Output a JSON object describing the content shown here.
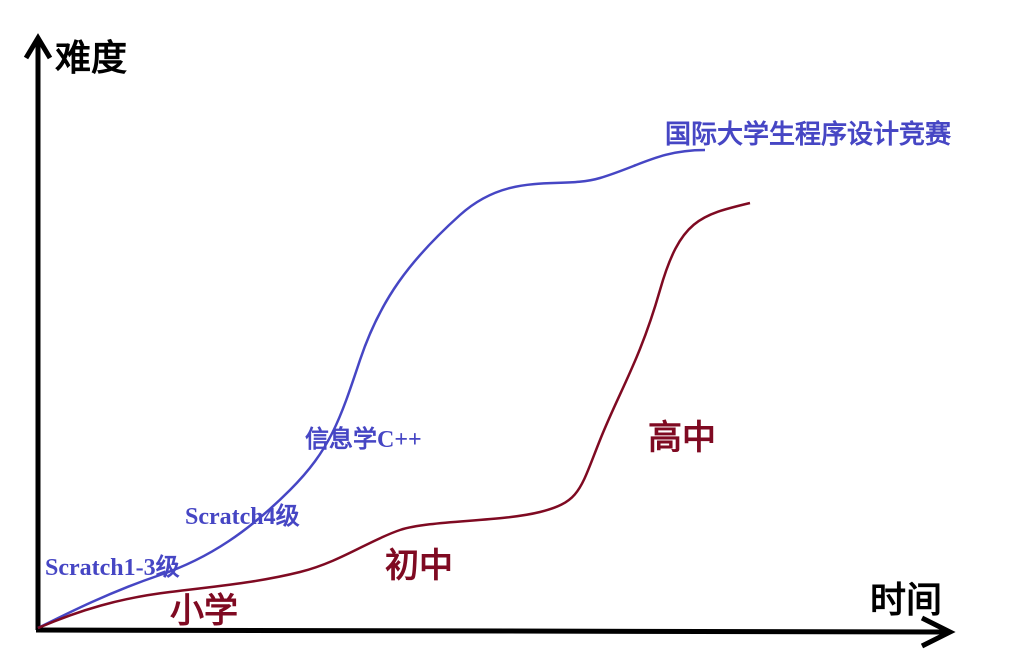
{
  "axes": {
    "y_label": "难度",
    "x_label": "时间"
  },
  "track_blue": [
    "Scratch1-3级",
    "Scratch4级",
    "信息学C++",
    "国际大学生程序设计竞赛"
  ],
  "track_red": [
    "小学",
    "初中",
    "高中"
  ]
}
